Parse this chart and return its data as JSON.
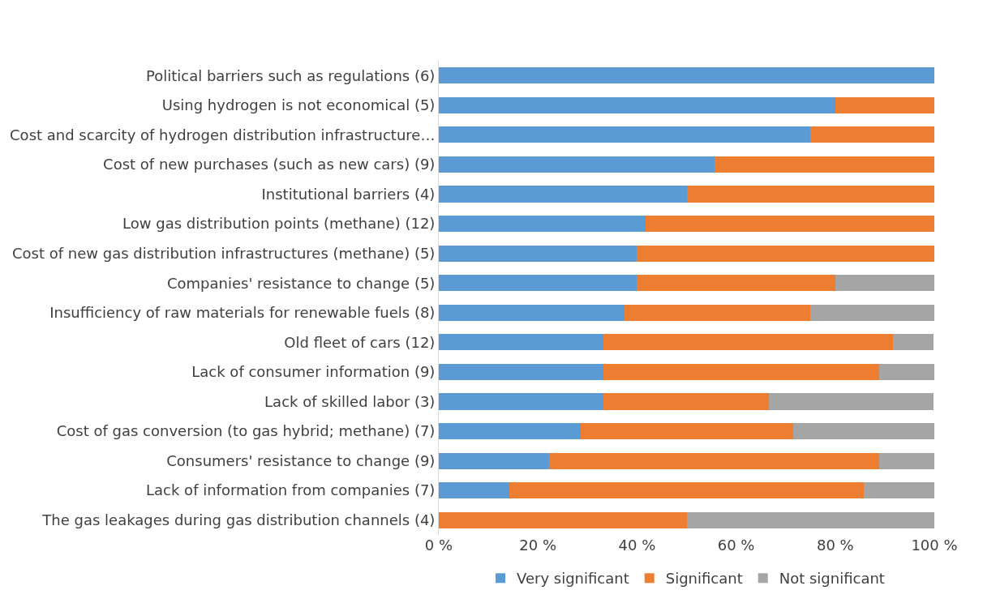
{
  "chart_data": {
    "type": "bar",
    "orientation": "horizontal",
    "stacked": true,
    "categories": [
      "Political barriers such as regulations (6)",
      "Using hydrogen is not economical (5)",
      "Cost and scarcity of hydrogen distribution infrastructure…",
      "Cost of new purchases (such as new cars) (9)",
      "Institutional barriers (4)",
      "Low gas distribution points (methane) (12)",
      "Cost of new gas distribution infrastructures (methane) (5)",
      "Companies' resistance to change (5)",
      "Insufficiency of raw materials for renewable fuels (8)",
      "Old fleet of cars (12)",
      "Lack of consumer information (9)",
      "Lack of skilled labor (3)",
      "Cost of gas conversion (to gas hybrid; methane) (7)",
      "Consumers' resistance to change (9)",
      "Lack of information from companies (7)",
      "The gas leakages during gas distribution channels (4)"
    ],
    "series": [
      {
        "name": "Very significant",
        "color": "#5b9bd5",
        "values": [
          100,
          80,
          75,
          55.6,
          50,
          41.7,
          40,
          40,
          37.5,
          33.3,
          33.3,
          33.3,
          28.6,
          22.2,
          14.3,
          0
        ]
      },
      {
        "name": "Significant",
        "color": "#ed7d31",
        "values": [
          0,
          20,
          25,
          44.4,
          50,
          58.3,
          60,
          40,
          37.5,
          58.3,
          55.6,
          33.3,
          42.9,
          66.7,
          71.4,
          50
        ]
      },
      {
        "name": "Not significant",
        "color": "#a5a5a5",
        "values": [
          0,
          0,
          0,
          0,
          0,
          0,
          0,
          20,
          25,
          8.3,
          11.1,
          33.3,
          28.6,
          11.1,
          14.3,
          50
        ]
      }
    ],
    "xlim": [
      0,
      100
    ],
    "xticks": [
      {
        "value": 0,
        "label": "0 %"
      },
      {
        "value": 20,
        "label": "20 %"
      },
      {
        "value": 40,
        "label": "40 %"
      },
      {
        "value": 60,
        "label": "60 %"
      },
      {
        "value": 80,
        "label": "80 %"
      },
      {
        "value": 100,
        "label": "100 %"
      }
    ],
    "legend": "bottom"
  }
}
